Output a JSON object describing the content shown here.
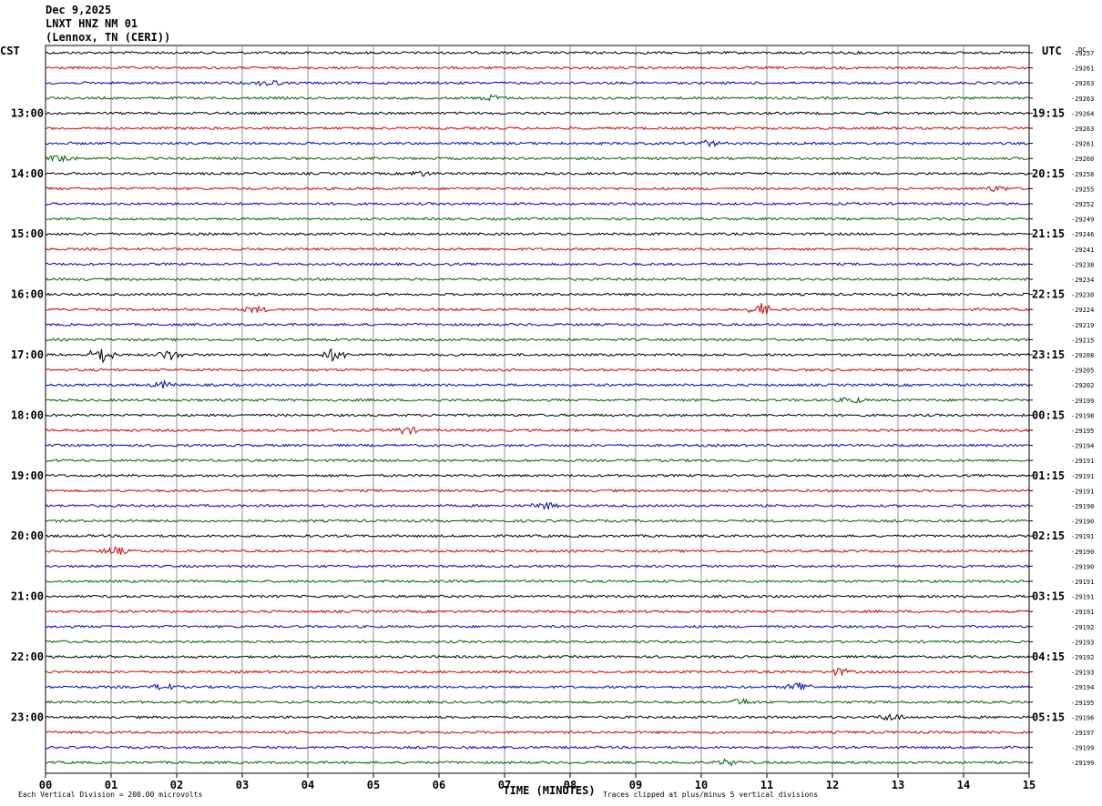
{
  "header": {
    "date": "Dec 9,2025",
    "station": "LNXT HNZ NM 01",
    "location": "(Lennox, TN (CERI))"
  },
  "chart_data": {
    "type": "line",
    "title": "",
    "xlabel": "TIME (MINUTES)",
    "x_ticks": [
      "00",
      "01",
      "02",
      "03",
      "04",
      "05",
      "06",
      "07",
      "08",
      "09",
      "10",
      "11",
      "12",
      "13",
      "14",
      "15"
    ],
    "xlim": [
      0,
      15
    ],
    "left_axis_label": "CST",
    "right_axis_label": "UTC",
    "right_top_label": "DC",
    "left_time_labels": [
      "13:00",
      "14:00",
      "15:00",
      "16:00",
      "17:00",
      "18:00",
      "19:00",
      "20:00",
      "21:00",
      "22:00",
      "23:00"
    ],
    "right_time_labels": [
      "19:15",
      "20:15",
      "21:15",
      "22:15",
      "23:15",
      "00:15",
      "01:15",
      "02:15",
      "03:15",
      "04:15",
      "05:15"
    ],
    "time_label_start_trace": 4,
    "time_label_every_traces": 4,
    "trace_colors": [
      "#000000",
      "#e00000",
      "#0000e0",
      "#006400"
    ],
    "dc_offsets": [
      "-29257",
      "-29261",
      "-29263",
      "-29263",
      "-29264",
      "-29263",
      "-29261",
      "-29260",
      "-29258",
      "-29255",
      "-29252",
      "-29249",
      "-29246",
      "-29241",
      "-29238",
      "-29234",
      "-29230",
      "-29224",
      "-29219",
      "-29215",
      "-29208",
      "-29205",
      "-29202",
      "-29199",
      "-29198",
      "-29195",
      "-29194",
      "-29191",
      "-29191",
      "-29191",
      "-29190",
      "-29190",
      "-29191",
      "-29190",
      "-29190",
      "-29191",
      "-29191",
      "-29191",
      "-29192",
      "-29193",
      "-29192",
      "-29193",
      "-29194",
      "-29195",
      "-29196",
      "-29197",
      "-29199",
      "-29199"
    ],
    "events": [
      {
        "trace": 2,
        "minute": 3.4,
        "amp": 1.6
      },
      {
        "trace": 3,
        "minute": 6.8,
        "amp": 1.3
      },
      {
        "trace": 6,
        "minute": 10.1,
        "amp": 1.5
      },
      {
        "trace": 7,
        "minute": 0.25,
        "amp": 2.0
      },
      {
        "trace": 8,
        "minute": 5.7,
        "amp": 1.2
      },
      {
        "trace": 9,
        "minute": 14.5,
        "amp": 1.3
      },
      {
        "trace": 17,
        "minute": 3.2,
        "amp": 1.5
      },
      {
        "trace": 17,
        "minute": 10.9,
        "amp": 3.0
      },
      {
        "trace": 20,
        "minute": 0.85,
        "amp": 4.5
      },
      {
        "trace": 20,
        "minute": 1.9,
        "amp": 2.5
      },
      {
        "trace": 20,
        "minute": 4.4,
        "amp": 3.0
      },
      {
        "trace": 22,
        "minute": 1.8,
        "amp": 1.5
      },
      {
        "trace": 23,
        "minute": 12.3,
        "amp": 1.5
      },
      {
        "trace": 25,
        "minute": 5.5,
        "amp": 1.8
      },
      {
        "trace": 30,
        "minute": 7.6,
        "amp": 1.8
      },
      {
        "trace": 33,
        "minute": 1.05,
        "amp": 2.0
      },
      {
        "trace": 41,
        "minute": 12.1,
        "amp": 1.6
      },
      {
        "trace": 42,
        "minute": 1.8,
        "amp": 1.6
      },
      {
        "trace": 42,
        "minute": 11.5,
        "amp": 2.8
      },
      {
        "trace": 43,
        "minute": 10.6,
        "amp": 1.5
      },
      {
        "trace": 44,
        "minute": 12.9,
        "amp": 1.8
      },
      {
        "trace": 47,
        "minute": 10.4,
        "amp": 1.4
      }
    ]
  },
  "footer": {
    "left_note": "Each Vertical Division =  200.00 microvolts",
    "right_note": "Traces clipped at plus/minus 5 vertical divisions"
  }
}
